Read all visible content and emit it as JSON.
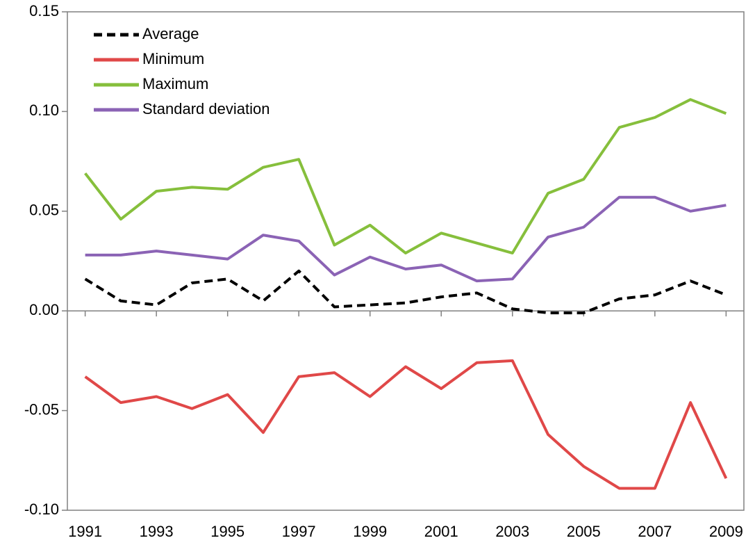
{
  "chart_data": {
    "type": "line",
    "x": [
      1991,
      1992,
      1993,
      1994,
      1995,
      1996,
      1997,
      1998,
      1999,
      2000,
      2001,
      2002,
      2003,
      2004,
      2005,
      2006,
      2007,
      2008,
      2009
    ],
    "xlim": [
      1990.5,
      2009.5
    ],
    "xticks": [
      1991,
      1993,
      1995,
      1997,
      1999,
      2001,
      2003,
      2005,
      2007,
      2009
    ],
    "ylim": [
      -0.1,
      0.15
    ],
    "yticks": [
      {
        "value": -0.1,
        "label": "-0.10"
      },
      -0.05,
      {
        "value": 0,
        "label": "0.00"
      },
      0.05,
      {
        "value": 0.1,
        "label": "0.10"
      },
      0.15
    ],
    "legend": "upper left",
    "series": [
      {
        "name": "Average",
        "color": "#000000",
        "dashed": true,
        "values": [
          0.016,
          0.005,
          0.003,
          0.014,
          0.016,
          0.005,
          0.02,
          0.002,
          0.003,
          0.004,
          0.007,
          0.009,
          0.001,
          -0.001,
          -0.001,
          0.006,
          0.008,
          0.015,
          0.008
        ]
      },
      {
        "name": "Minimum",
        "color": "#e04848",
        "values": [
          -0.033,
          -0.046,
          -0.043,
          -0.049,
          -0.042,
          -0.061,
          -0.033,
          -0.031,
          -0.043,
          -0.028,
          -0.039,
          -0.026,
          -0.025,
          -0.062,
          -0.078,
          -0.089,
          -0.089,
          -0.046,
          -0.084
        ]
      },
      {
        "name": "Maximum",
        "color": "#86bf3c",
        "values": [
          0.069,
          0.046,
          0.06,
          0.062,
          0.061,
          0.072,
          0.076,
          0.033,
          0.043,
          0.029,
          0.039,
          0.034,
          0.029,
          0.059,
          0.066,
          0.092,
          0.097,
          0.106,
          0.099
        ]
      },
      {
        "name": "Standard deviation",
        "color": "#8b63b5",
        "values": [
          0.028,
          0.028,
          0.03,
          0.028,
          0.026,
          0.038,
          0.035,
          0.018,
          0.027,
          0.021,
          0.023,
          0.015,
          0.016,
          0.037,
          0.042,
          0.057,
          0.057,
          0.05,
          0.053
        ]
      }
    ]
  }
}
